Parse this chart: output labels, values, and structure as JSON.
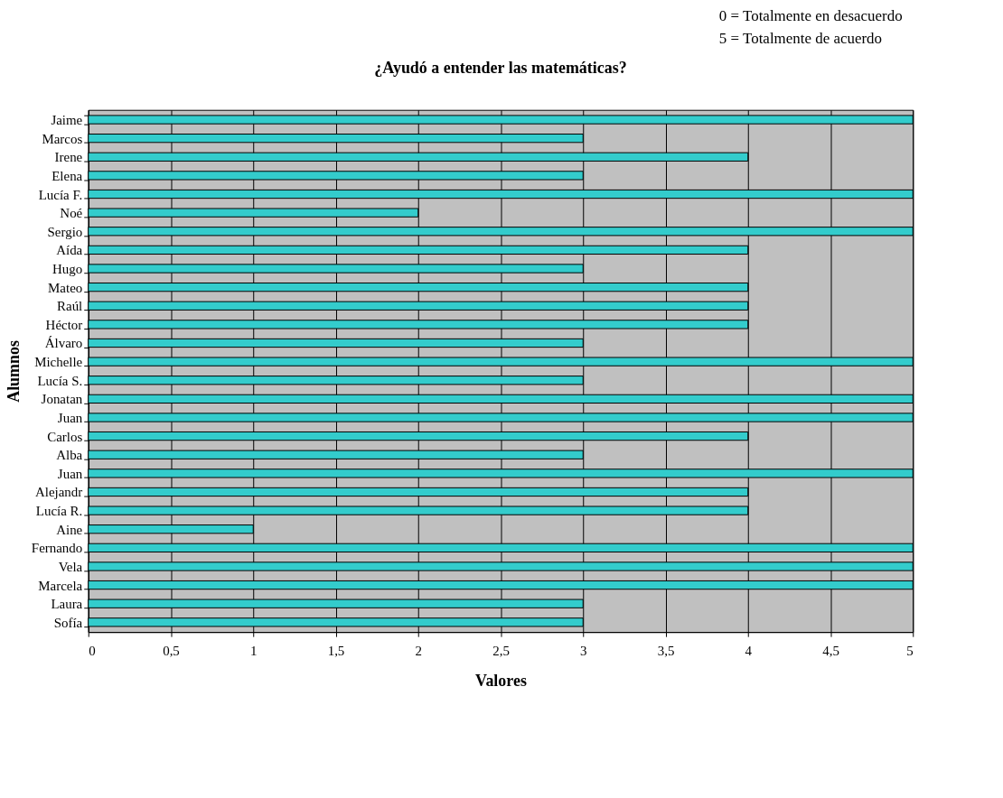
{
  "chart_data": {
    "type": "bar",
    "orientation": "horizontal",
    "title": "¿Ayudó a entender las matemáticas?",
    "xlabel": "Valores",
    "ylabel": "Alumnos",
    "categories": [
      "Jaime",
      "Marcos",
      "Irene",
      "Elena",
      "Lucía F.",
      "Noé",
      "Sergio",
      "Aída",
      "Hugo",
      "Mateo",
      "Raúl",
      "Héctor",
      "Álvaro",
      "Michelle",
      "Lucía S.",
      "Jonatan",
      "Juan",
      "Carlos",
      "Alba",
      "Juan",
      "Alejandr",
      "Lucía R.",
      "Aine",
      "Fernando",
      "Vela",
      "Marcela",
      "Laura",
      "Sofía"
    ],
    "values": [
      5,
      3,
      4,
      3,
      5,
      2,
      5,
      4,
      3,
      4,
      4,
      4,
      3,
      5,
      3,
      5,
      5,
      4,
      3,
      5,
      4,
      4,
      1,
      5,
      5,
      5,
      3,
      3
    ],
    "color": "#33cccc",
    "xlim": [
      0,
      5
    ],
    "xticks": [
      0,
      {
        "value": 0.5,
        "label": "0,5"
      },
      1,
      {
        "value": 1.5,
        "label": "1,5"
      },
      2,
      {
        "value": 2.5,
        "label": "2,5"
      },
      3,
      {
        "value": 3.5,
        "label": "3,5"
      },
      4,
      {
        "value": 4.5,
        "label": "4,5"
      },
      5
    ],
    "grid": "x",
    "annotations": [
      "0 = Totalmente en desacuerdo",
      "5 = Totalmente de acuerdo"
    ]
  }
}
